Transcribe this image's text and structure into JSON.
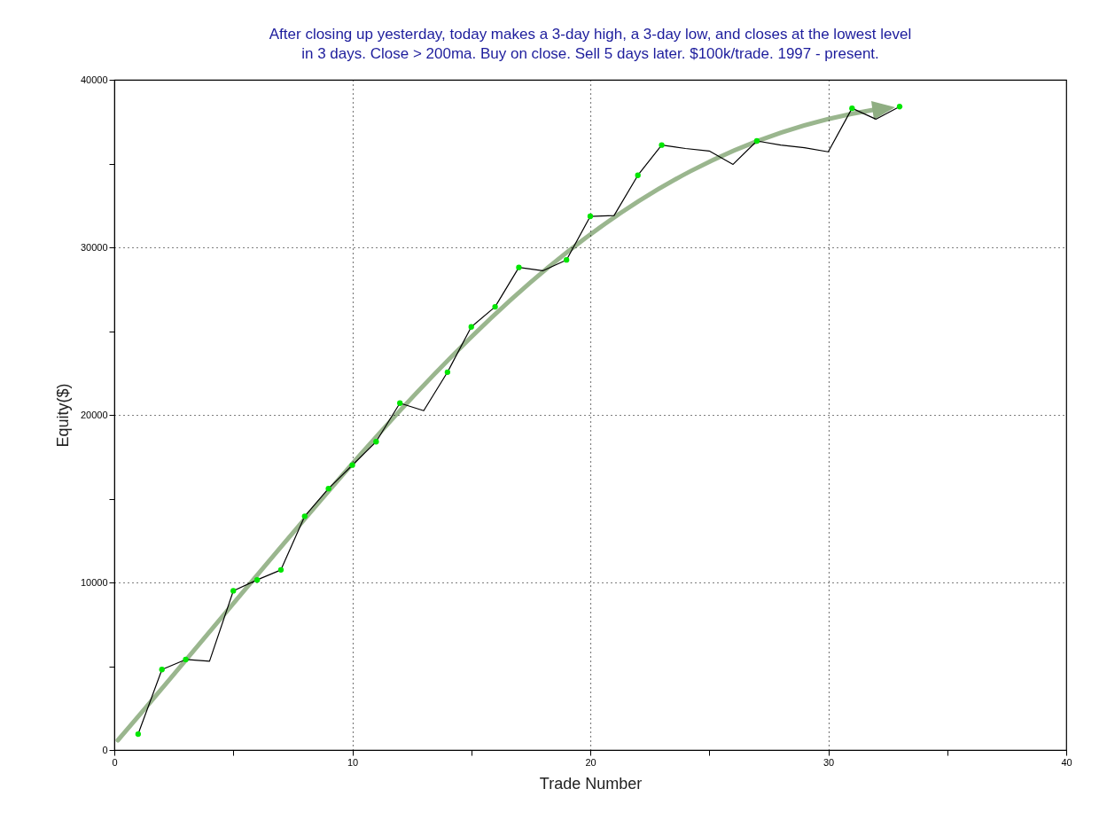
{
  "chart_data": {
    "type": "line",
    "title": "After closing up yesterday, today makes a 3-day high, a 3-day low, and closes at the lowest level in 3 days. Close > 200ma. Buy on close. Sell 5 days later. $100k/trade. 1997 - present.",
    "xlabel": "Trade Number",
    "ylabel": "Equity($)",
    "xlim": [
      0,
      40
    ],
    "xticks": [
      0,
      {
        "value": 5,
        "label": null
      },
      10,
      {
        "value": 15,
        "label": null
      },
      20,
      {
        "value": 25,
        "label": null
      },
      30,
      {
        "value": 35,
        "label": null
      },
      40
    ],
    "ylim": [
      0,
      40000
    ],
    "yticks": [
      0,
      {
        "value": 5000,
        "label": null
      },
      10000,
      {
        "value": 15000,
        "label": null
      },
      20000,
      {
        "value": 25000,
        "label": null
      },
      30000,
      {
        "value": 35000,
        "label": null
      },
      40000
    ],
    "grid": true,
    "series": [
      {
        "color": "#000000",
        "marker": "none",
        "x": [
          1,
          2,
          3,
          4,
          5,
          6,
          7,
          8,
          9,
          10,
          11,
          12,
          13,
          14,
          15,
          16,
          17,
          18,
          19,
          20,
          21,
          22,
          23,
          24,
          25,
          26,
          27,
          28,
          29,
          30,
          31,
          32,
          33
        ],
        "values": [
          950,
          4800,
          5400,
          5300,
          9500,
          10150,
          10750,
          13950,
          15600,
          17000,
          18400,
          20700,
          20250,
          22550,
          25250,
          26450,
          28800,
          28600,
          29250,
          31850,
          31900,
          34300,
          36100,
          35900,
          35750,
          34950,
          36350,
          36100,
          35950,
          35700,
          38300,
          37650,
          38400
        ]
      },
      {
        "type": "scatter",
        "color": "#00e600",
        "marker": "circle",
        "x": [
          1,
          2,
          3,
          5,
          6,
          7,
          8,
          9,
          10,
          11,
          12,
          14,
          15,
          16,
          17,
          19,
          20,
          22,
          23,
          27,
          31,
          33
        ],
        "values": [
          950,
          4800,
          5400,
          9500,
          10150,
          10750,
          13950,
          15600,
          17000,
          18400,
          20700,
          22550,
          25250,
          26450,
          28800,
          29250,
          31850,
          34300,
          36100,
          36350,
          38300,
          38400
        ]
      }
    ]
  }
}
